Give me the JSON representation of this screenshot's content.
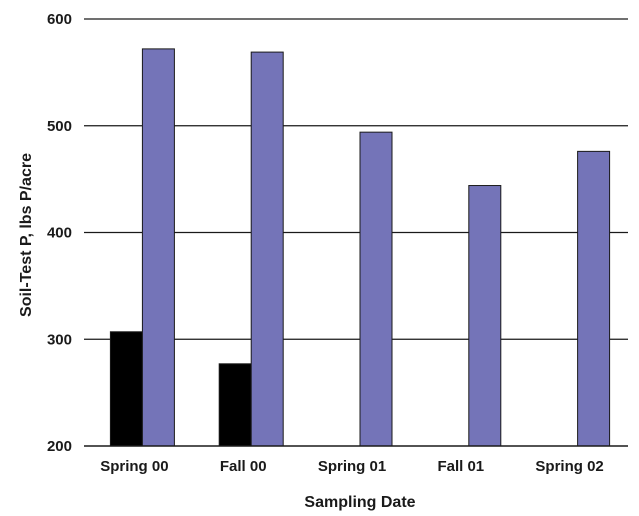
{
  "chart_data": {
    "type": "bar",
    "title": "",
    "xlabel": "Sampling Date",
    "ylabel": "Soil-Test P, lbs P/acre",
    "categories": [
      "Spring 00",
      "Fall 00",
      "Spring 01",
      "Fall 01",
      "Spring 02"
    ],
    "series": [
      {
        "color": "#000000",
        "values": [
          307,
          277,
          null,
          null,
          null
        ]
      },
      {
        "color": "#7474b8",
        "values": [
          572,
          569,
          494,
          444,
          476
        ]
      }
    ],
    "ylim": [
      200,
      600
    ],
    "yticks": [
      200,
      300,
      400,
      500,
      600
    ],
    "grid": true,
    "legend": "none"
  }
}
